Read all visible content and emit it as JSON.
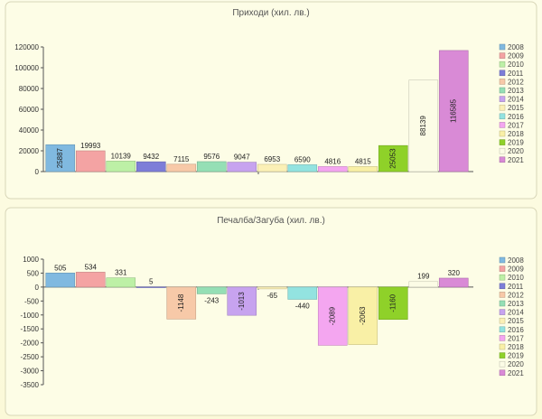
{
  "chart_data": [
    {
      "type": "bar",
      "title": "Приходи (хил. лв.)",
      "categories": [
        "2008",
        "2009",
        "2010",
        "2011",
        "2012",
        "2013",
        "2014",
        "2015",
        "2016",
        "2017",
        "2018",
        "2019",
        "2020",
        "2021"
      ],
      "values": [
        25887,
        19993,
        10139,
        9432,
        7115,
        9576,
        9047,
        6953,
        6590,
        4816,
        4815,
        25053,
        88139,
        116585
      ],
      "ylim": [
        0,
        120000
      ],
      "yticks": [
        "0",
        "20000",
        "40000",
        "60000",
        "80000",
        "100000",
        "120000"
      ],
      "ytick_values": [
        0,
        20000,
        40000,
        60000,
        80000,
        100000,
        120000
      ],
      "grid": false,
      "legend": "right",
      "rotated_labels": [
        true,
        false,
        false,
        false,
        false,
        false,
        false,
        false,
        false,
        false,
        false,
        true,
        true,
        true
      ]
    },
    {
      "type": "bar",
      "title": "Печалба/Загуба (хил. лв.)",
      "categories": [
        "2008",
        "2009",
        "2010",
        "2011",
        "2012",
        "2013",
        "2014",
        "2015",
        "2016",
        "2017",
        "2018",
        "2019",
        "2020",
        "2021"
      ],
      "values": [
        505,
        534,
        331,
        5,
        -1148,
        -243,
        -1013,
        -65,
        -440,
        -2089,
        -2063,
        -1160,
        199,
        320
      ],
      "ylim": [
        -3500,
        1000
      ],
      "yticks": [
        "1000",
        "500",
        "0",
        "-500",
        "-1000",
        "-1500",
        "-2000",
        "-2500",
        "-3000",
        "-3500"
      ],
      "ytick_values": [
        1000,
        500,
        0,
        -500,
        -1000,
        -1500,
        -2000,
        -2500,
        -3000,
        -3500
      ],
      "grid": false,
      "legend": "right",
      "rotated_labels": [
        false,
        false,
        false,
        false,
        true,
        false,
        true,
        false,
        false,
        true,
        true,
        true,
        false,
        false
      ]
    }
  ],
  "colors": [
    "#80b9e0",
    "#f4a3a3",
    "#bdf0a6",
    "#7d7dd8",
    "#f7c9a8",
    "#95dfb5",
    "#c7a3ef",
    "#fbf0b6",
    "#93e3e0",
    "#f4a6f0",
    "#f9f0a6",
    "#8fd129",
    "#fcfce6",
    "#d98ad6"
  ]
}
